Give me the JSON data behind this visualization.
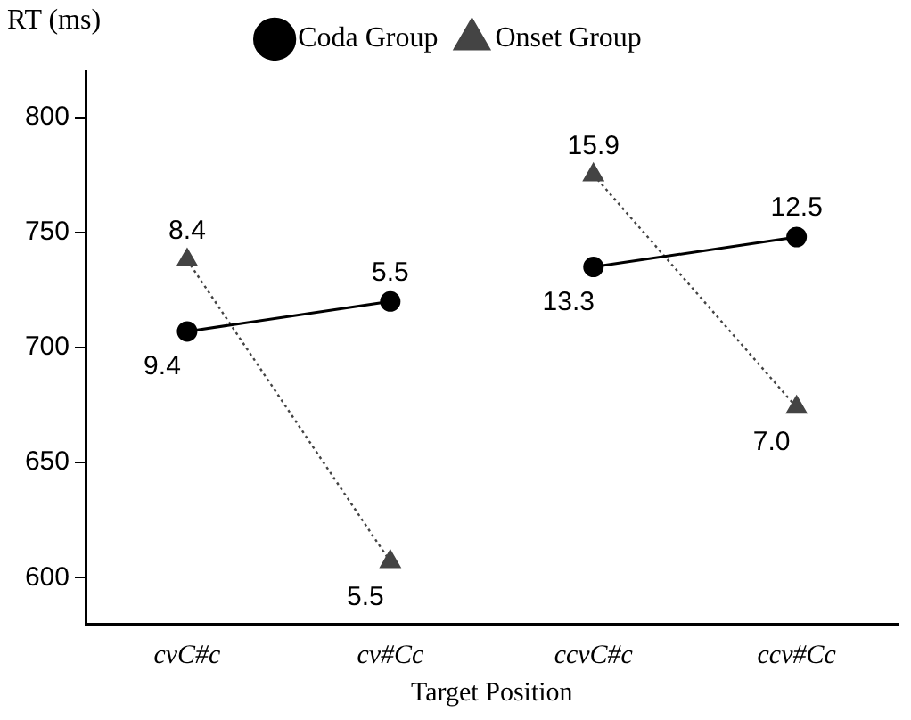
{
  "chart_data": {
    "type": "line",
    "xlabel": "Target Position",
    "ylabel": "RT (ms)",
    "categories": [
      "cvC#c",
      "cv#Cc",
      "ccvC#c",
      "ccv#Cc"
    ],
    "ylim": [
      580,
      820
    ],
    "yticks": [
      600,
      650,
      700,
      750,
      800
    ],
    "grid": false,
    "legend": "top",
    "series": [
      {
        "name": "Coda Group",
        "color": "#000000",
        "marker": "circle",
        "line_style": "solid",
        "values": [
          707,
          720,
          null,
          null
        ]
      },
      {
        "name": "Onset Group",
        "color": "#444444",
        "marker": "triangle",
        "line_style": "dotted",
        "values": [
          738,
          607,
          null,
          null
        ]
      },
      {
        "color": "#000000",
        "marker": "circle",
        "line_style": "solid",
        "values": [
          null,
          null,
          735,
          748
        ]
      },
      {
        "color": "#444444",
        "marker": "triangle",
        "line_style": "dotted",
        "values": [
          null,
          null,
          775,
          674
        ]
      }
    ],
    "annotations": [
      {
        "text": "9.4",
        "x": "cvC#c",
        "y": 707
      },
      {
        "text": "5.5",
        "x": "cv#Cc",
        "y": 720
      },
      {
        "text": "8.4",
        "x": "cvC#c",
        "y": 738
      },
      {
        "text": "5.5",
        "x": "cv#Cc",
        "y": 607
      },
      {
        "text": "13.3",
        "x": "ccvC#c",
        "y": 735
      },
      {
        "text": "12.5",
        "x": "ccv#Cc",
        "y": 748
      },
      {
        "text": "15.9",
        "x": "ccvC#c",
        "y": 775
      },
      {
        "text": "7.0",
        "x": "ccv#Cc",
        "y": 674
      }
    ]
  }
}
